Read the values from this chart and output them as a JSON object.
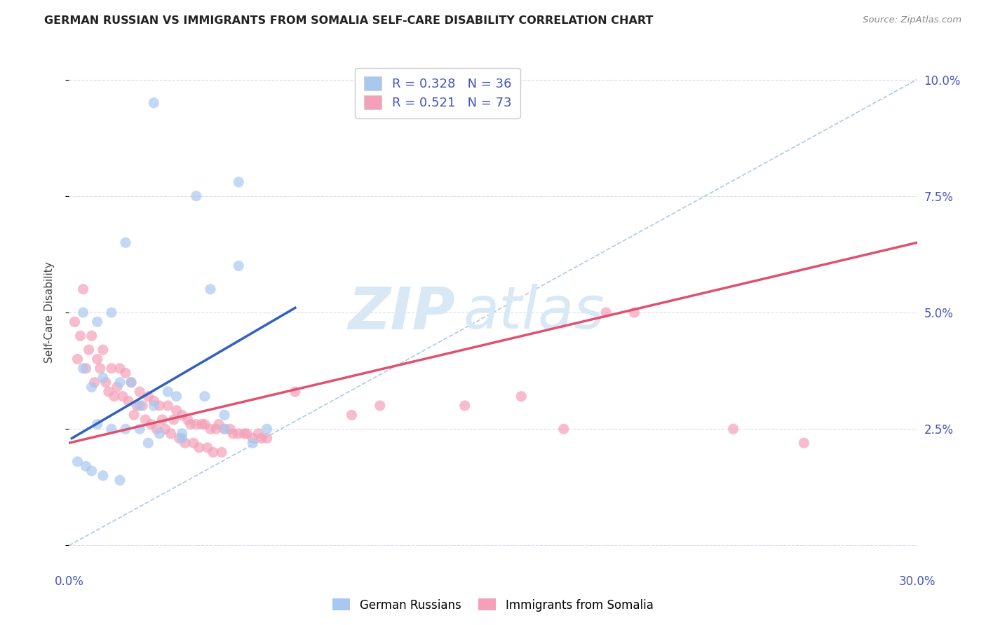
{
  "title": "GERMAN RUSSIAN VS IMMIGRANTS FROM SOMALIA SELF-CARE DISABILITY CORRELATION CHART",
  "source": "Source: ZipAtlas.com",
  "ylabel": "Self-Care Disability",
  "x_min": 0.0,
  "x_max": 0.3,
  "y_min": -0.005,
  "y_max": 0.105,
  "x_ticks": [
    0.0,
    0.05,
    0.1,
    0.15,
    0.2,
    0.25,
    0.3
  ],
  "x_tick_labels": [
    "0.0%",
    "",
    "",
    "",
    "",
    "",
    "30.0%"
  ],
  "y_ticks": [
    0.0,
    0.025,
    0.05,
    0.075,
    0.1
  ],
  "y_tick_labels": [
    "",
    "2.5%",
    "5.0%",
    "7.5%",
    "10.0%"
  ],
  "legend_r1": "R = 0.328",
  "legend_n1": "N = 36",
  "legend_r2": "R = 0.521",
  "legend_n2": "N = 73",
  "blue_color": "#A8C8F0",
  "pink_color": "#F4A0B8",
  "blue_line_color": "#3060C0",
  "pink_line_color": "#E05070",
  "dashed_line_color": "#B0C8E8",
  "watermark_zip": "ZIP",
  "watermark_atlas": "atlas",
  "blue_scatter_x": [
    0.03,
    0.045,
    0.06,
    0.02,
    0.05,
    0.005,
    0.01,
    0.015,
    0.005,
    0.012,
    0.008,
    0.018,
    0.022,
    0.035,
    0.048,
    0.025,
    0.03,
    0.01,
    0.015,
    0.02,
    0.025,
    0.032,
    0.04,
    0.055,
    0.003,
    0.006,
    0.008,
    0.012,
    0.018,
    0.06,
    0.04,
    0.055,
    0.065,
    0.07,
    0.038,
    0.028
  ],
  "blue_scatter_y": [
    0.095,
    0.075,
    0.078,
    0.065,
    0.055,
    0.05,
    0.048,
    0.05,
    0.038,
    0.036,
    0.034,
    0.035,
    0.035,
    0.033,
    0.032,
    0.03,
    0.03,
    0.026,
    0.025,
    0.025,
    0.025,
    0.024,
    0.024,
    0.028,
    0.018,
    0.017,
    0.016,
    0.015,
    0.014,
    0.06,
    0.023,
    0.025,
    0.022,
    0.025,
    0.032,
    0.022
  ],
  "pink_scatter_x": [
    0.005,
    0.008,
    0.012,
    0.01,
    0.015,
    0.018,
    0.02,
    0.022,
    0.025,
    0.028,
    0.03,
    0.032,
    0.035,
    0.038,
    0.04,
    0.042,
    0.045,
    0.048,
    0.05,
    0.052,
    0.055,
    0.06,
    0.065,
    0.07,
    0.003,
    0.006,
    0.009,
    0.014,
    0.016,
    0.024,
    0.026,
    0.033,
    0.037,
    0.043,
    0.047,
    0.002,
    0.004,
    0.007,
    0.011,
    0.013,
    0.017,
    0.019,
    0.021,
    0.023,
    0.027,
    0.029,
    0.031,
    0.034,
    0.036,
    0.039,
    0.041,
    0.044,
    0.046,
    0.049,
    0.051,
    0.054,
    0.058,
    0.062,
    0.068,
    0.053,
    0.057,
    0.063,
    0.067,
    0.08,
    0.11,
    0.14,
    0.19,
    0.2,
    0.16,
    0.1,
    0.175,
    0.235,
    0.26
  ],
  "pink_scatter_y": [
    0.055,
    0.045,
    0.042,
    0.04,
    0.038,
    0.038,
    0.037,
    0.035,
    0.033,
    0.032,
    0.031,
    0.03,
    0.03,
    0.029,
    0.028,
    0.027,
    0.026,
    0.026,
    0.025,
    0.025,
    0.025,
    0.024,
    0.023,
    0.023,
    0.04,
    0.038,
    0.035,
    0.033,
    0.032,
    0.03,
    0.03,
    0.027,
    0.027,
    0.026,
    0.026,
    0.048,
    0.045,
    0.042,
    0.038,
    0.035,
    0.034,
    0.032,
    0.031,
    0.028,
    0.027,
    0.026,
    0.025,
    0.025,
    0.024,
    0.023,
    0.022,
    0.022,
    0.021,
    0.021,
    0.02,
    0.02,
    0.024,
    0.024,
    0.023,
    0.026,
    0.025,
    0.024,
    0.024,
    0.033,
    0.03,
    0.03,
    0.05,
    0.05,
    0.032,
    0.028,
    0.025,
    0.025,
    0.022
  ],
  "blue_line_x": [
    0.001,
    0.08
  ],
  "blue_line_y": [
    0.023,
    0.051
  ],
  "pink_line_x": [
    0.0,
    0.3
  ],
  "pink_line_y": [
    0.022,
    0.065
  ],
  "dashed_line_x": [
    0.0,
    0.3
  ],
  "dashed_line_y": [
    0.0,
    0.1
  ],
  "background_color": "#FFFFFF",
  "grid_color": "#DDDDEE"
}
